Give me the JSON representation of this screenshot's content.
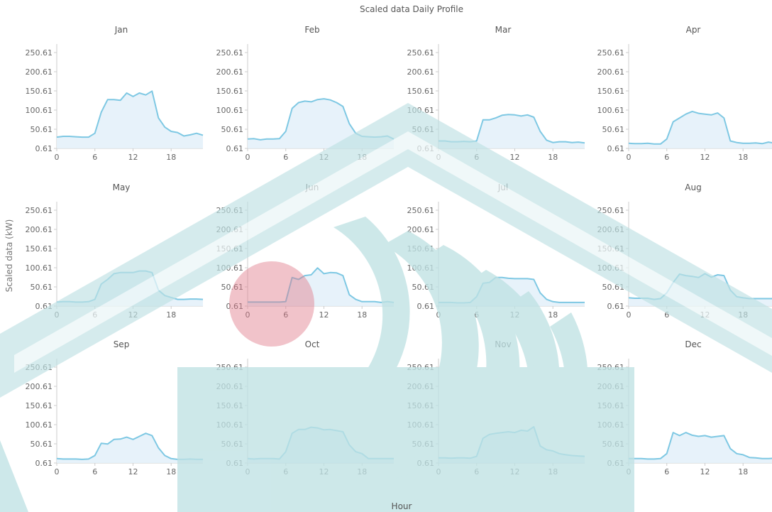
{
  "chart_data": {
    "type": "line",
    "title": "Scaled data Daily Profile",
    "ylabel": "Scaled data (kW)",
    "xlabel": "Hour",
    "x_ticks": [
      0,
      6,
      12,
      18
    ],
    "y_ticks": [
      0.61,
      50.61,
      100.61,
      150.61,
      200.61,
      250.61
    ],
    "ylim": [
      0.61,
      250.61
    ],
    "xlim": [
      0,
      23
    ],
    "colors": {
      "line": "#7ec8e3",
      "fill": "#e4f1fa",
      "axis": "#cccccc",
      "tick_text": "#666666"
    },
    "panels": [
      {
        "title": "Jan",
        "x": [
          0,
          1,
          2,
          3,
          4,
          5,
          6,
          7,
          8,
          9,
          10,
          11,
          12,
          13,
          14,
          15,
          16,
          17,
          18,
          19,
          20,
          21,
          22,
          23
        ],
        "y": [
          30,
          32,
          32,
          31,
          30,
          30,
          40,
          95,
          128,
          128,
          126,
          145,
          136,
          145,
          140,
          150,
          80,
          56,
          45,
          42,
          33,
          36,
          40,
          35
        ]
      },
      {
        "title": "Feb",
        "x": [
          0,
          1,
          2,
          3,
          4,
          5,
          6,
          7,
          8,
          9,
          10,
          11,
          12,
          13,
          14,
          15,
          16,
          17,
          18,
          19,
          20,
          21,
          22,
          23
        ],
        "y": [
          25,
          26,
          23,
          25,
          25,
          26,
          45,
          105,
          120,
          124,
          122,
          128,
          130,
          127,
          120,
          110,
          65,
          40,
          32,
          31,
          30,
          31,
          33,
          25
        ]
      },
      {
        "title": "Mar",
        "x": [
          0,
          1,
          2,
          3,
          4,
          5,
          6,
          7,
          8,
          9,
          10,
          11,
          12,
          13,
          14,
          15,
          16,
          17,
          18,
          19,
          20,
          21,
          22,
          23
        ],
        "y": [
          20,
          20,
          18,
          18,
          19,
          18,
          20,
          75,
          75,
          80,
          87,
          89,
          88,
          85,
          88,
          82,
          45,
          22,
          16,
          18,
          18,
          16,
          17,
          15
        ]
      },
      {
        "title": "Apr",
        "x": [
          0,
          1,
          2,
          3,
          4,
          5,
          6,
          7,
          8,
          9,
          10,
          11,
          12,
          13,
          14,
          15,
          16,
          17,
          18,
          19,
          20,
          21,
          22,
          23
        ],
        "y": [
          14,
          13,
          13,
          14,
          12,
          12,
          25,
          70,
          80,
          90,
          97,
          92,
          90,
          88,
          93,
          80,
          20,
          16,
          14,
          14,
          15,
          13,
          17,
          14
        ]
      },
      {
        "title": "May",
        "x": [
          0,
          1,
          2,
          3,
          4,
          5,
          6,
          7,
          8,
          9,
          10,
          11,
          12,
          13,
          14,
          15,
          16,
          17,
          18,
          19,
          20,
          21,
          22,
          23
        ],
        "y": [
          11,
          12,
          12,
          11,
          11,
          12,
          18,
          58,
          70,
          85,
          88,
          88,
          88,
          92,
          92,
          88,
          42,
          28,
          23,
          18,
          18,
          19,
          19,
          18
        ]
      },
      {
        "title": "Jun",
        "x": [
          0,
          1,
          2,
          3,
          4,
          5,
          6,
          7,
          8,
          9,
          10,
          11,
          12,
          13,
          14,
          15,
          16,
          17,
          18,
          19,
          20,
          21,
          22,
          23
        ],
        "y": [
          11,
          11,
          11,
          11,
          11,
          11,
          12,
          75,
          70,
          80,
          82,
          100,
          85,
          88,
          87,
          80,
          30,
          18,
          12,
          12,
          12,
          10,
          12,
          10
        ]
      },
      {
        "title": "Jul",
        "x": [
          0,
          1,
          2,
          3,
          4,
          5,
          6,
          7,
          8,
          9,
          10,
          11,
          12,
          13,
          14,
          15,
          16,
          17,
          18,
          19,
          20,
          21,
          22,
          23
        ],
        "y": [
          10,
          10,
          10,
          9,
          9,
          10,
          25,
          60,
          62,
          75,
          75,
          73,
          72,
          72,
          72,
          70,
          35,
          18,
          12,
          10,
          10,
          10,
          10,
          10
        ]
      },
      {
        "title": "Aug",
        "x": [
          0,
          1,
          2,
          3,
          4,
          5,
          6,
          7,
          8,
          9,
          10,
          11,
          12,
          13,
          14,
          15,
          16,
          17,
          18,
          19,
          20,
          21,
          22,
          23
        ],
        "y": [
          22,
          21,
          21,
          21,
          18,
          20,
          35,
          62,
          84,
          80,
          78,
          75,
          85,
          76,
          82,
          80,
          42,
          25,
          22,
          20,
          20,
          20,
          20,
          20
        ]
      },
      {
        "title": "Sep",
        "x": [
          0,
          1,
          2,
          3,
          4,
          5,
          6,
          7,
          8,
          9,
          10,
          11,
          12,
          13,
          14,
          15,
          16,
          17,
          18,
          19,
          20,
          21,
          22,
          23
        ],
        "y": [
          12,
          11,
          11,
          11,
          10,
          11,
          20,
          52,
          50,
          62,
          63,
          68,
          62,
          70,
          78,
          72,
          40,
          20,
          12,
          10,
          10,
          11,
          10,
          10
        ]
      },
      {
        "title": "Oct",
        "x": [
          0,
          1,
          2,
          3,
          4,
          5,
          6,
          7,
          8,
          9,
          10,
          11,
          12,
          13,
          14,
          15,
          16,
          17,
          18,
          19,
          20,
          21,
          22,
          23
        ],
        "y": [
          12,
          11,
          12,
          12,
          12,
          11,
          30,
          78,
          88,
          88,
          94,
          92,
          87,
          88,
          85,
          82,
          48,
          30,
          25,
          12,
          12,
          12,
          12,
          12
        ]
      },
      {
        "title": "Nov",
        "x": [
          0,
          1,
          2,
          3,
          4,
          5,
          6,
          7,
          8,
          9,
          10,
          11,
          12,
          13,
          14,
          15,
          16,
          17,
          18,
          19,
          20,
          21,
          22,
          23
        ],
        "y": [
          14,
          14,
          13,
          14,
          14,
          13,
          18,
          65,
          75,
          78,
          80,
          82,
          80,
          86,
          84,
          95,
          45,
          35,
          32,
          25,
          22,
          20,
          19,
          18
        ]
      },
      {
        "title": "Dec",
        "x": [
          0,
          1,
          2,
          3,
          4,
          5,
          6,
          7,
          8,
          9,
          10,
          11,
          12,
          13,
          14,
          15,
          16,
          17,
          18,
          19,
          20,
          21,
          22,
          23
        ],
        "y": [
          12,
          12,
          12,
          11,
          11,
          12,
          25,
          80,
          72,
          80,
          73,
          70,
          72,
          68,
          70,
          72,
          38,
          25,
          22,
          15,
          14,
          12,
          12,
          13
        ]
      }
    ]
  }
}
